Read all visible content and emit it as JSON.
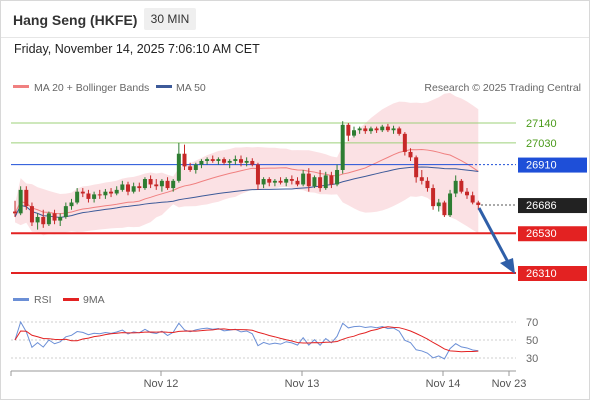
{
  "header": {
    "title": "Hang Seng (HKFE)",
    "timeframe": "30 MIN"
  },
  "datetime": "Friday, November 14, 2025 7:06:10 AM CET",
  "legend": {
    "ma20_bb": "MA 20 + Bollinger Bands",
    "ma50": "MA 50",
    "credit": "Research © 2025 Trading Central"
  },
  "rsi_legend": {
    "rsi": "RSI",
    "ma9": "9MA"
  },
  "colors": {
    "bull": "#2e7d32",
    "bear": "#c62828",
    "band_fill": "#fadadd",
    "ma20": "#f08080",
    "ma50": "#3d5a99",
    "resistance": "#9ed07a",
    "pivot": "#1e4fd8",
    "support": "#e32222",
    "arrow": "#2f5fa8",
    "rsi": "#6b8fd6",
    "rsi_ma": "#e32222"
  },
  "levels": [
    {
      "label": "27140",
      "value": 27140,
      "kind": "resistance"
    },
    {
      "label": "27030",
      "value": 27030,
      "kind": "resistance"
    },
    {
      "label": "26910",
      "value": 26910,
      "kind": "pivot"
    },
    {
      "label": "26686",
      "value": 26686,
      "kind": "last"
    },
    {
      "label": "26530",
      "value": 26530,
      "kind": "support"
    },
    {
      "label": "26310",
      "value": 26310,
      "kind": "support"
    }
  ],
  "chart_data": {
    "type": "candlestick",
    "price_range": [
      26310,
      27140
    ],
    "x_labels": [
      "Nov 12",
      "Nov 13",
      "Nov 14",
      "Nov 23"
    ],
    "candles": [
      {
        "o": 26650,
        "h": 26710,
        "l": 26620,
        "c": 26640
      },
      {
        "o": 26640,
        "h": 26790,
        "l": 26630,
        "c": 26770
      },
      {
        "o": 26770,
        "h": 26790,
        "l": 26660,
        "c": 26680
      },
      {
        "o": 26680,
        "h": 26700,
        "l": 26570,
        "c": 26590
      },
      {
        "o": 26590,
        "h": 26640,
        "l": 26550,
        "c": 26620
      },
      {
        "o": 26620,
        "h": 26660,
        "l": 26560,
        "c": 26580
      },
      {
        "o": 26580,
        "h": 26650,
        "l": 26570,
        "c": 26640
      },
      {
        "o": 26640,
        "h": 26660,
        "l": 26580,
        "c": 26600
      },
      {
        "o": 26600,
        "h": 26640,
        "l": 26570,
        "c": 26620
      },
      {
        "o": 26620,
        "h": 26700,
        "l": 26610,
        "c": 26680
      },
      {
        "o": 26680,
        "h": 26720,
        "l": 26660,
        "c": 26700
      },
      {
        "o": 26700,
        "h": 26780,
        "l": 26690,
        "c": 26760
      },
      {
        "o": 26760,
        "h": 26780,
        "l": 26730,
        "c": 26750
      },
      {
        "o": 26750,
        "h": 26770,
        "l": 26700,
        "c": 26720
      },
      {
        "o": 26720,
        "h": 26760,
        "l": 26700,
        "c": 26745
      },
      {
        "o": 26745,
        "h": 26770,
        "l": 26720,
        "c": 26740
      },
      {
        "o": 26740,
        "h": 26775,
        "l": 26720,
        "c": 26760
      },
      {
        "o": 26760,
        "h": 26780,
        "l": 26730,
        "c": 26750
      },
      {
        "o": 26750,
        "h": 26790,
        "l": 26740,
        "c": 26770
      },
      {
        "o": 26770,
        "h": 26820,
        "l": 26760,
        "c": 26800
      },
      {
        "o": 26800,
        "h": 26815,
        "l": 26740,
        "c": 26760
      },
      {
        "o": 26760,
        "h": 26810,
        "l": 26750,
        "c": 26790
      },
      {
        "o": 26790,
        "h": 26810,
        "l": 26760,
        "c": 26780
      },
      {
        "o": 26780,
        "h": 26840,
        "l": 26770,
        "c": 26830
      },
      {
        "o": 26830,
        "h": 26850,
        "l": 26780,
        "c": 26800
      },
      {
        "o": 26800,
        "h": 26830,
        "l": 26770,
        "c": 26790
      },
      {
        "o": 26790,
        "h": 26830,
        "l": 26760,
        "c": 26820
      },
      {
        "o": 26820,
        "h": 26840,
        "l": 26770,
        "c": 26780
      },
      {
        "o": 26780,
        "h": 26830,
        "l": 26760,
        "c": 26820
      },
      {
        "o": 26820,
        "h": 27030,
        "l": 26810,
        "c": 26970
      },
      {
        "o": 26970,
        "h": 27020,
        "l": 26880,
        "c": 26900
      },
      {
        "o": 26900,
        "h": 26920,
        "l": 26870,
        "c": 26880
      },
      {
        "o": 26880,
        "h": 26920,
        "l": 26860,
        "c": 26910
      },
      {
        "o": 26910,
        "h": 26940,
        "l": 26890,
        "c": 26930
      },
      {
        "o": 26930,
        "h": 26950,
        "l": 26910,
        "c": 26940
      },
      {
        "o": 26940,
        "h": 26960,
        "l": 26920,
        "c": 26930
      },
      {
        "o": 26930,
        "h": 26950,
        "l": 26910,
        "c": 26940
      },
      {
        "o": 26940,
        "h": 26950,
        "l": 26910,
        "c": 26920
      },
      {
        "o": 26920,
        "h": 26940,
        "l": 26890,
        "c": 26930
      },
      {
        "o": 26930,
        "h": 26960,
        "l": 26910,
        "c": 26940
      },
      {
        "o": 26940,
        "h": 26960,
        "l": 26900,
        "c": 26920
      },
      {
        "o": 26920,
        "h": 26950,
        "l": 26900,
        "c": 26930
      },
      {
        "o": 26930,
        "h": 26945,
        "l": 26900,
        "c": 26910
      },
      {
        "o": 26910,
        "h": 26920,
        "l": 26770,
        "c": 26800
      },
      {
        "o": 26800,
        "h": 26840,
        "l": 26780,
        "c": 26830
      },
      {
        "o": 26830,
        "h": 26840,
        "l": 26790,
        "c": 26810
      },
      {
        "o": 26810,
        "h": 26830,
        "l": 26790,
        "c": 26820
      },
      {
        "o": 26820,
        "h": 26840,
        "l": 26800,
        "c": 26810
      },
      {
        "o": 26810,
        "h": 26840,
        "l": 26790,
        "c": 26830
      },
      {
        "o": 26830,
        "h": 26850,
        "l": 26800,
        "c": 26820
      },
      {
        "o": 26820,
        "h": 26840,
        "l": 26790,
        "c": 26800
      },
      {
        "o": 26800,
        "h": 26880,
        "l": 26790,
        "c": 26860
      },
      {
        "o": 26860,
        "h": 26890,
        "l": 26760,
        "c": 26790
      },
      {
        "o": 26790,
        "h": 26850,
        "l": 26780,
        "c": 26840
      },
      {
        "o": 26840,
        "h": 26880,
        "l": 26760,
        "c": 26780
      },
      {
        "o": 26780,
        "h": 26870,
        "l": 26770,
        "c": 26850
      },
      {
        "o": 26850,
        "h": 26870,
        "l": 26780,
        "c": 26800
      },
      {
        "o": 26800,
        "h": 26910,
        "l": 26790,
        "c": 26880
      },
      {
        "o": 26880,
        "h": 27150,
        "l": 26860,
        "c": 27130
      },
      {
        "o": 27130,
        "h": 27140,
        "l": 27040,
        "c": 27070
      },
      {
        "o": 27070,
        "h": 27120,
        "l": 27060,
        "c": 27100
      },
      {
        "o": 27100,
        "h": 27120,
        "l": 27080,
        "c": 27110
      },
      {
        "o": 27110,
        "h": 27125,
        "l": 27080,
        "c": 27095
      },
      {
        "o": 27095,
        "h": 27120,
        "l": 27080,
        "c": 27110
      },
      {
        "o": 27110,
        "h": 27120,
        "l": 27085,
        "c": 27100
      },
      {
        "o": 27100,
        "h": 27130,
        "l": 27090,
        "c": 27120
      },
      {
        "o": 27120,
        "h": 27135,
        "l": 27090,
        "c": 27100
      },
      {
        "o": 27100,
        "h": 27125,
        "l": 27080,
        "c": 27110
      },
      {
        "o": 27110,
        "h": 27120,
        "l": 27070,
        "c": 27080
      },
      {
        "o": 27080,
        "h": 27090,
        "l": 26960,
        "c": 26980
      },
      {
        "o": 26980,
        "h": 27000,
        "l": 26930,
        "c": 26950
      },
      {
        "o": 26950,
        "h": 26960,
        "l": 26810,
        "c": 26840
      },
      {
        "o": 26840,
        "h": 26880,
        "l": 26800,
        "c": 26820
      },
      {
        "o": 26820,
        "h": 26840,
        "l": 26760,
        "c": 26780
      },
      {
        "o": 26780,
        "h": 26800,
        "l": 26660,
        "c": 26680
      },
      {
        "o": 26680,
        "h": 26720,
        "l": 26650,
        "c": 26700
      },
      {
        "o": 26700,
        "h": 26710,
        "l": 26620,
        "c": 26630
      },
      {
        "o": 26630,
        "h": 26770,
        "l": 26620,
        "c": 26750
      },
      {
        "o": 26750,
        "h": 26850,
        "l": 26730,
        "c": 26820
      },
      {
        "o": 26820,
        "h": 26830,
        "l": 26750,
        "c": 26760
      },
      {
        "o": 26760,
        "h": 26780,
        "l": 26720,
        "c": 26740
      },
      {
        "o": 26740,
        "h": 26760,
        "l": 26690,
        "c": 26700
      },
      {
        "o": 26700,
        "h": 26710,
        "l": 26660,
        "c": 26686
      }
    ],
    "rsi_axis": [
      30,
      50,
      70
    ]
  }
}
